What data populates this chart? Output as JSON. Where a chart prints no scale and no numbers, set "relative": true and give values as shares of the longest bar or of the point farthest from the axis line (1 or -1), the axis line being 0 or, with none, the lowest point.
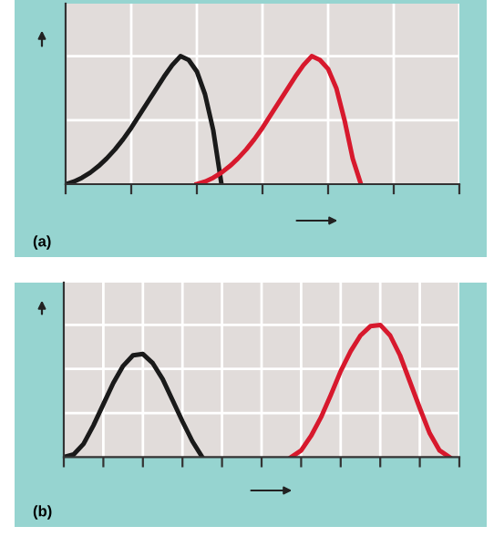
{
  "chart_data": [
    {
      "type": "line",
      "relative": true,
      "grid": true,
      "annotations": [
        "(a)"
      ],
      "categories": [
        null,
        null,
        null,
        null,
        null,
        null,
        null,
        null,
        null,
        null,
        null,
        null,
        null,
        null,
        null,
        null,
        null,
        null,
        null,
        null,
        null,
        null,
        null,
        null,
        null,
        null,
        null,
        null,
        null,
        null,
        null,
        null,
        null,
        null,
        null,
        null,
        null,
        null,
        null,
        null,
        null,
        null,
        null,
        null,
        null,
        null,
        null,
        null,
        null
      ],
      "series": [
        {
          "color": "#1a1a1a",
          "values": [
            0,
            0.02,
            0.05,
            0.09,
            0.14,
            0.2,
            0.27,
            0.35,
            0.44,
            0.54,
            0.64,
            0.74,
            0.84,
            0.93,
            1.0,
            0.97,
            0.88,
            0.7,
            0.42,
            0,
            null,
            null,
            null,
            null,
            null,
            null,
            null,
            null,
            null,
            null,
            null,
            null,
            null,
            null,
            null,
            null,
            null,
            null,
            null,
            null,
            null,
            null,
            null,
            null,
            null,
            null,
            null,
            null,
            null
          ]
        },
        {
          "color": "#d7192d",
          "values": [
            null,
            null,
            null,
            null,
            null,
            null,
            null,
            null,
            null,
            null,
            null,
            null,
            null,
            null,
            null,
            null,
            0,
            0.02,
            0.05,
            0.09,
            0.14,
            0.2,
            0.27,
            0.35,
            0.44,
            0.54,
            0.64,
            0.74,
            0.84,
            0.93,
            1.0,
            0.97,
            0.9,
            0.75,
            0.5,
            0.2,
            0,
            null,
            null,
            null,
            null,
            null,
            null,
            null,
            null,
            null,
            null,
            null,
            null
          ]
        }
      ]
    },
    {
      "type": "line",
      "relative": true,
      "grid": true,
      "annotations": [
        "(b)"
      ],
      "categories": [
        null,
        null,
        null,
        null,
        null,
        null,
        null,
        null,
        null,
        null,
        null,
        null,
        null,
        null,
        null,
        null,
        null,
        null,
        null,
        null,
        null,
        null,
        null,
        null,
        null,
        null,
        null,
        null,
        null,
        null,
        null,
        null,
        null,
        null,
        null,
        null,
        null,
        null,
        null,
        null,
        null
      ],
      "series": [
        {
          "color": "#1a1a1a",
          "values": [
            0,
            0.02,
            0.1,
            0.24,
            0.4,
            0.56,
            0.69,
            0.77,
            0.78,
            0.71,
            0.59,
            0.43,
            0.27,
            0.12,
            0,
            null,
            null,
            null,
            null,
            null,
            null,
            null,
            null,
            null,
            null,
            null,
            null,
            null,
            null,
            null,
            null,
            null,
            null,
            null,
            null,
            null,
            null,
            null,
            null,
            null,
            null
          ]
        },
        {
          "color": "#d7192d",
          "values": [
            null,
            null,
            null,
            null,
            null,
            null,
            null,
            null,
            null,
            null,
            null,
            null,
            null,
            null,
            null,
            null,
            null,
            null,
            null,
            null,
            null,
            null,
            null,
            0,
            0.05,
            0.16,
            0.3,
            0.47,
            0.65,
            0.8,
            0.92,
            0.99,
            1.0,
            0.92,
            0.77,
            0.57,
            0.37,
            0.18,
            0.05,
            0,
            null
          ]
        }
      ]
    }
  ]
}
